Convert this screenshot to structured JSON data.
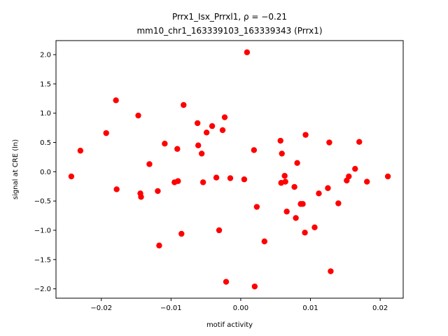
{
  "chart_data": {
    "type": "scatter",
    "title_line1": "Prrx1_Isx_Prrxl1, ρ = −0.21",
    "title_line2": "mm10_chr1_163339103_163339343 (Prrx1)",
    "xlabel": "motif activity",
    "ylabel": "signal at CRE (ln)",
    "xlim": [
      -0.0265,
      0.0233
    ],
    "ylim": [
      -2.16,
      2.24
    ],
    "xticks": [
      -0.02,
      -0.01,
      0.0,
      0.01,
      0.02
    ],
    "xtick_labels": [
      "−0.02",
      "−0.01",
      "0.00",
      "0.01",
      "0.02"
    ],
    "yticks": [
      -2.0,
      -1.5,
      -1.0,
      -0.5,
      0.0,
      0.5,
      1.0,
      1.5,
      2.0
    ],
    "ytick_labels": [
      "−2.0",
      "−1.5",
      "−1.0",
      "−0.5",
      "0.0",
      "0.5",
      "1.0",
      "1.5",
      "2.0"
    ],
    "marker_color": "#ff0000",
    "grid": false,
    "points": [
      {
        "x": -0.0243,
        "y": -0.08
      },
      {
        "x": -0.023,
        "y": 0.36
      },
      {
        "x": -0.0193,
        "y": 0.66
      },
      {
        "x": -0.0179,
        "y": 1.22
      },
      {
        "x": -0.0178,
        "y": -0.3
      },
      {
        "x": -0.0147,
        "y": 0.96
      },
      {
        "x": -0.0144,
        "y": -0.37
      },
      {
        "x": -0.0143,
        "y": -0.43
      },
      {
        "x": -0.0131,
        "y": 0.13
      },
      {
        "x": -0.0119,
        "y": -0.33
      },
      {
        "x": -0.0117,
        "y": -1.26
      },
      {
        "x": -0.0109,
        "y": 0.48
      },
      {
        "x": -0.0095,
        "y": -0.18
      },
      {
        "x": -0.0091,
        "y": 0.39
      },
      {
        "x": -0.009,
        "y": -0.16
      },
      {
        "x": -0.0085,
        "y": -1.06
      },
      {
        "x": -0.0082,
        "y": 1.14
      },
      {
        "x": -0.0062,
        "y": 0.83
      },
      {
        "x": -0.0061,
        "y": 0.45
      },
      {
        "x": -0.0056,
        "y": 0.31
      },
      {
        "x": -0.0054,
        "y": -0.18
      },
      {
        "x": -0.0049,
        "y": 0.67
      },
      {
        "x": -0.0041,
        "y": 0.78
      },
      {
        "x": -0.0035,
        "y": -0.1
      },
      {
        "x": -0.0031,
        "y": -1.0
      },
      {
        "x": -0.0026,
        "y": 0.71
      },
      {
        "x": -0.0023,
        "y": 0.93
      },
      {
        "x": -0.0021,
        "y": -1.88
      },
      {
        "x": -0.0015,
        "y": -0.11
      },
      {
        "x": 0.0005,
        "y": -0.13
      },
      {
        "x": 0.0009,
        "y": 2.04
      },
      {
        "x": 0.0019,
        "y": 0.37
      },
      {
        "x": 0.002,
        "y": -1.96
      },
      {
        "x": 0.0023,
        "y": -0.6
      },
      {
        "x": 0.0034,
        "y": -1.19
      },
      {
        "x": 0.0057,
        "y": 0.53
      },
      {
        "x": 0.0058,
        "y": -0.19
      },
      {
        "x": 0.0059,
        "y": 0.31
      },
      {
        "x": 0.0063,
        "y": -0.07
      },
      {
        "x": 0.0064,
        "y": -0.17
      },
      {
        "x": 0.0066,
        "y": -0.68
      },
      {
        "x": 0.0077,
        "y": -0.26
      },
      {
        "x": 0.0079,
        "y": -0.79
      },
      {
        "x": 0.0081,
        "y": 0.15
      },
      {
        "x": 0.0086,
        "y": -0.55
      },
      {
        "x": 0.0089,
        "y": -0.55
      },
      {
        "x": 0.0092,
        "y": -1.04
      },
      {
        "x": 0.0093,
        "y": 0.63
      },
      {
        "x": 0.0106,
        "y": -0.95
      },
      {
        "x": 0.0112,
        "y": -0.37
      },
      {
        "x": 0.0125,
        "y": -0.28
      },
      {
        "x": 0.0127,
        "y": 0.5
      },
      {
        "x": 0.0129,
        "y": -1.7
      },
      {
        "x": 0.014,
        "y": -0.54
      },
      {
        "x": 0.0152,
        "y": -0.15
      },
      {
        "x": 0.0155,
        "y": -0.08
      },
      {
        "x": 0.0164,
        "y": 0.05
      },
      {
        "x": 0.017,
        "y": 0.51
      },
      {
        "x": 0.0181,
        "y": -0.17
      },
      {
        "x": 0.0211,
        "y": -0.08
      }
    ]
  }
}
